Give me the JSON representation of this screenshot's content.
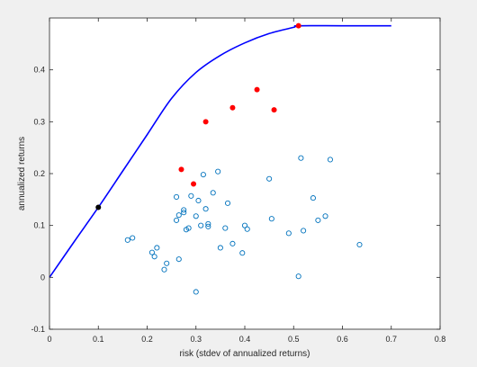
{
  "chart_data": {
    "type": "scatter",
    "title": "",
    "xlabel": "risk (stdev of annualized returns)",
    "ylabel": "annualized returns",
    "xlim": [
      0,
      0.8
    ],
    "ylim": [
      -0.1,
      0.5
    ],
    "xticks": [
      "0",
      "0.1",
      "0.2",
      "0.3",
      "0.4",
      "0.5",
      "0.6",
      "0.7",
      "0.8"
    ],
    "yticks": [
      "-0.1",
      "0",
      "0.1",
      "0.2",
      "0.3",
      "0.4"
    ],
    "grid": false,
    "legend": "none",
    "frontier_line": {
      "color": "#0000ff",
      "x": [
        0,
        0.05,
        0.1,
        0.15,
        0.2,
        0.25,
        0.3,
        0.35,
        0.4,
        0.45,
        0.5,
        0.51,
        0.6,
        0.7
      ],
      "y": [
        0,
        0.068,
        0.135,
        0.205,
        0.275,
        0.345,
        0.395,
        0.428,
        0.452,
        0.47,
        0.482,
        0.485,
        0.485,
        0.485
      ]
    },
    "assets": {
      "color": "#0072bd",
      "marker": "open-circle",
      "points": [
        [
          0.16,
          0.072
        ],
        [
          0.17,
          0.076
        ],
        [
          0.21,
          0.048
        ],
        [
          0.215,
          0.04
        ],
        [
          0.22,
          0.057
        ],
        [
          0.235,
          0.015
        ],
        [
          0.24,
          0.027
        ],
        [
          0.26,
          0.11
        ],
        [
          0.26,
          0.155
        ],
        [
          0.265,
          0.12
        ],
        [
          0.265,
          0.035
        ],
        [
          0.275,
          0.125
        ],
        [
          0.275,
          0.13
        ],
        [
          0.28,
          0.092
        ],
        [
          0.285,
          0.095
        ],
        [
          0.29,
          0.157
        ],
        [
          0.3,
          -0.028
        ],
        [
          0.3,
          0.118
        ],
        [
          0.305,
          0.148
        ],
        [
          0.31,
          0.1
        ],
        [
          0.315,
          0.198
        ],
        [
          0.32,
          0.132
        ],
        [
          0.325,
          0.103
        ],
        [
          0.325,
          0.098
        ],
        [
          0.335,
          0.163
        ],
        [
          0.345,
          0.204
        ],
        [
          0.35,
          0.057
        ],
        [
          0.36,
          0.095
        ],
        [
          0.365,
          0.143
        ],
        [
          0.375,
          0.065
        ],
        [
          0.395,
          0.047
        ],
        [
          0.4,
          0.1
        ],
        [
          0.405,
          0.093
        ],
        [
          0.45,
          0.19
        ],
        [
          0.455,
          0.113
        ],
        [
          0.49,
          0.085
        ],
        [
          0.51,
          0.002
        ],
        [
          0.515,
          0.23
        ],
        [
          0.52,
          0.09
        ],
        [
          0.54,
          0.153
        ],
        [
          0.55,
          0.11
        ],
        [
          0.565,
          0.118
        ],
        [
          0.575,
          0.227
        ],
        [
          0.635,
          0.063
        ]
      ]
    },
    "highlighted": {
      "color": "#ff0000",
      "points": [
        [
          0.27,
          0.208
        ],
        [
          0.295,
          0.18
        ],
        [
          0.32,
          0.3
        ],
        [
          0.375,
          0.327
        ],
        [
          0.425,
          0.362
        ],
        [
          0.46,
          0.323
        ],
        [
          0.51,
          0.485
        ]
      ]
    },
    "reference_point": {
      "color": "#000000",
      "x": 0.1,
      "y": 0.135
    }
  }
}
